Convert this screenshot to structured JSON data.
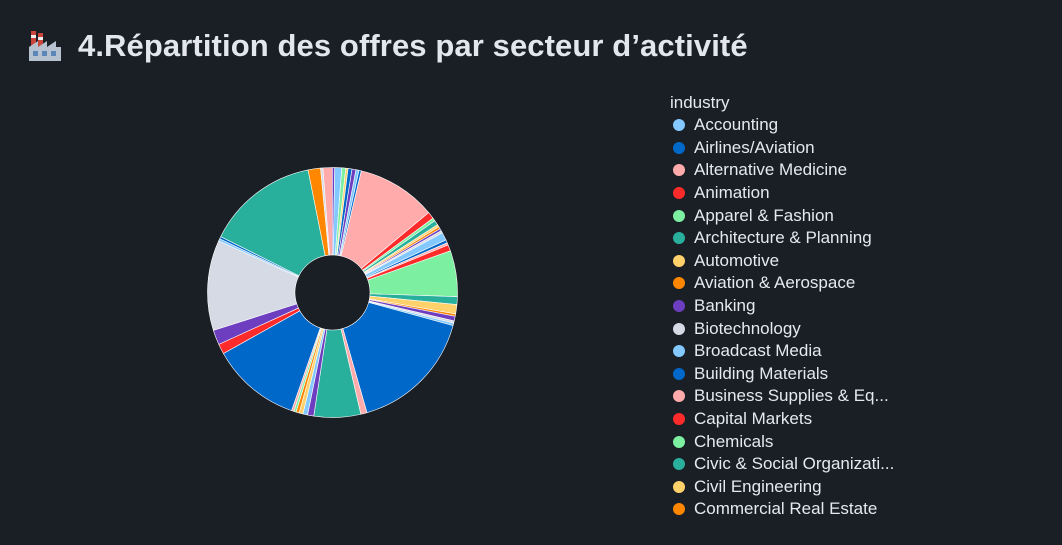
{
  "header": {
    "title": "4.Répartition des offres par secteur d’activité",
    "icon": "factory-icon"
  },
  "colors": {
    "background": "#1a1e25",
    "text": "#e6e9ee"
  },
  "chart_data": {
    "type": "pie",
    "hole": 0.3,
    "legend_title": "industry",
    "legend_position": "right",
    "slices": [
      {
        "label": "Accounting",
        "color": "#83c9ff",
        "value": 0.4
      },
      {
        "label": "Airlines/Aviation",
        "color": "#0068c9",
        "value": 0.3
      },
      {
        "label": "Alternative Medicine",
        "color": "#ffabab",
        "value": 10.2
      },
      {
        "label": "Animation",
        "color": "#ff2b2b",
        "value": 0.9
      },
      {
        "label": "Apparel & Fashion",
        "color": "#7defa1",
        "value": 0.4
      },
      {
        "label": "Architecture & Planning",
        "color": "#29b09d",
        "value": 0.6
      },
      {
        "label": "Automotive",
        "color": "#ffd16a",
        "value": 0.3
      },
      {
        "label": "Aviation & Aerospace",
        "color": "#ff8700",
        "value": 0.3
      },
      {
        "label": "Banking",
        "color": "#6d3fc0",
        "value": 0.3
      },
      {
        "label": "Biotechnology",
        "color": "#d5dae5",
        "value": 0.3
      },
      {
        "label": "Broadcast Media",
        "color": "#83c9ff",
        "value": 1.0
      },
      {
        "label": "Building Materials",
        "color": "#0068c9",
        "value": 0.4
      },
      {
        "label": "Business Supplies & Eq...",
        "color": "#ffabab",
        "value": 0.3
      },
      {
        "label": "Capital Markets",
        "color": "#ff2b2b",
        "value": 0.8
      },
      {
        "label": "Chemicals",
        "color": "#7defa1",
        "value": 5.9
      },
      {
        "label": "Civic & Social Organizati...",
        "color": "#29b09d",
        "value": 1.0
      },
      {
        "label": "Civil Engineering",
        "color": "#ffd16a",
        "value": 1.2
      },
      {
        "label": "Commercial Real Estate",
        "color": "#ff8700",
        "value": 0.3
      },
      {
        "label": "",
        "color": "#6d3fc0",
        "value": 0.6
      },
      {
        "label": "",
        "color": "#d5dae5",
        "value": 0.3
      },
      {
        "label": "",
        "color": "#83c9ff",
        "value": 0.3
      },
      {
        "label": "",
        "color": "#0068c9",
        "value": 16.2
      },
      {
        "label": "",
        "color": "#ffabab",
        "value": 0.8
      },
      {
        "label": "",
        "color": "#29b09d",
        "value": 6.0
      },
      {
        "label": "",
        "color": "#6d3fc0",
        "value": 0.8
      },
      {
        "label": "",
        "color": "#83c9ff",
        "value": 0.6
      },
      {
        "label": "",
        "color": "#ffd16a",
        "value": 0.5
      },
      {
        "label": "",
        "color": "#ff8700",
        "value": 0.4
      },
      {
        "label": "",
        "color": "#7defa1",
        "value": 0.3
      },
      {
        "label": "",
        "color": "#ffabab",
        "value": 0.3
      },
      {
        "label": "",
        "color": "#0068c9",
        "value": 11.5
      },
      {
        "label": "",
        "color": "#ff2b2b",
        "value": 1.3
      },
      {
        "label": "",
        "color": "#6d3fc0",
        "value": 1.9
      },
      {
        "label": "",
        "color": "#d5dae5",
        "value": 11.6
      },
      {
        "label": "",
        "color": "#83c9ff",
        "value": 0.3
      },
      {
        "label": "",
        "color": "#0068c9",
        "value": 0.3
      },
      {
        "label": "",
        "color": "#29b09d",
        "value": 14.4
      },
      {
        "label": "",
        "color": "#ff8700",
        "value": 1.6
      },
      {
        "label": "",
        "color": "#d5dae5",
        "value": 0.3
      },
      {
        "label": "",
        "color": "#ffabab",
        "value": 1.2
      },
      {
        "label": "",
        "color": "#6d3fc0",
        "value": 0.3
      },
      {
        "label": "",
        "color": "#83c9ff",
        "value": 0.9
      },
      {
        "label": "",
        "color": "#7defa1",
        "value": 0.5
      },
      {
        "label": "",
        "color": "#ffd16a",
        "value": 0.3
      },
      {
        "label": "",
        "color": "#0068c9",
        "value": 0.5
      },
      {
        "label": "",
        "color": "#6d3fc0",
        "value": 0.5
      }
    ]
  }
}
